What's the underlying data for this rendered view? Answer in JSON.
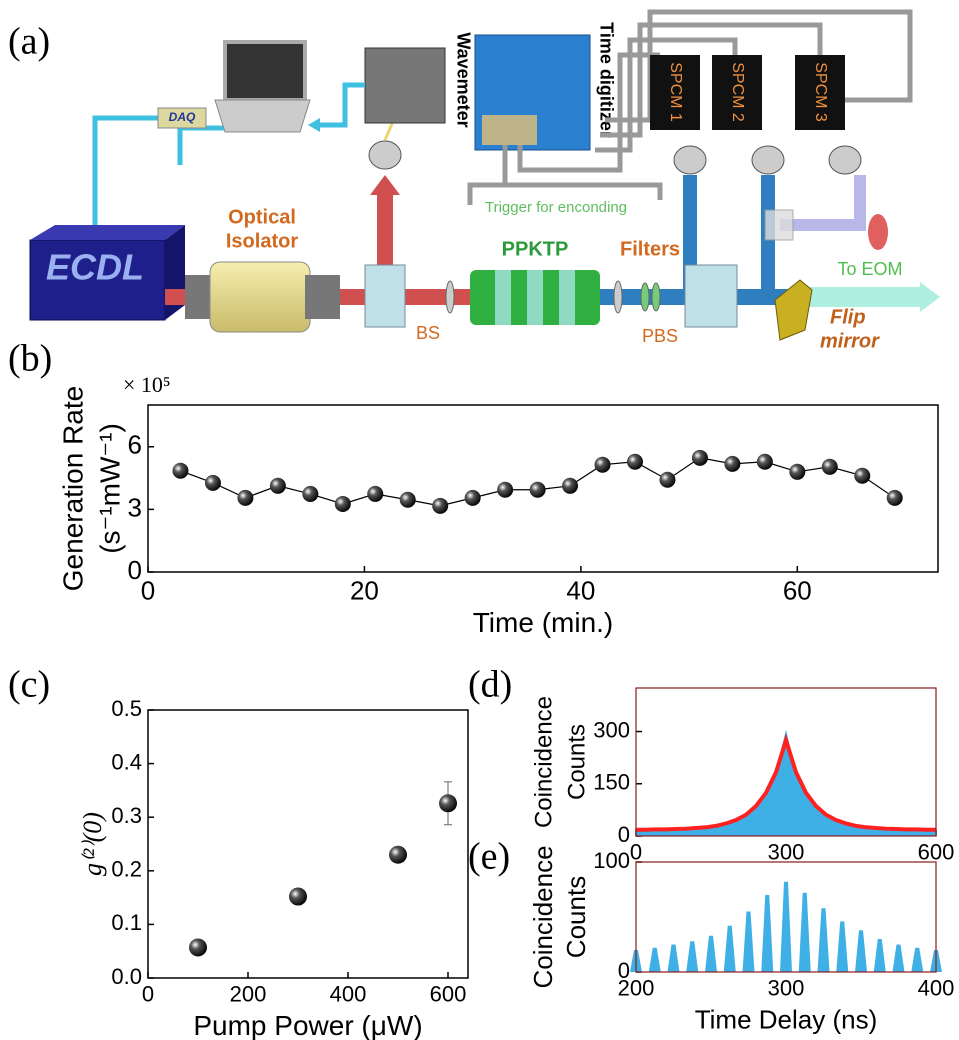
{
  "panel_labels": [
    "(a)",
    "(b)",
    "(c)",
    "(d)",
    "(e)"
  ],
  "diagram": {
    "ecdl": "ECDL",
    "optical_isolator": [
      "Optical",
      "Isolator"
    ],
    "bs": "BS",
    "ppktp": "PPKTP",
    "filters": "Filters",
    "pbs": "PBS",
    "flip_mirror": [
      "Flip",
      "mirror"
    ],
    "to_eom": "To EOM",
    "daq": "DAQ",
    "wavemeter": "Wavemeter",
    "time_digitizer": "Time digitizer",
    "spcm": [
      "SPCM 1",
      "SPCM 2",
      "SPCM 3"
    ],
    "trigger": "Trigger for enconding"
  },
  "chart_data": [
    {
      "type": "line",
      "xlabel": "Time (min.)",
      "ylabel": [
        "Generation Rate",
        "(s⁻¹mW⁻¹)"
      ],
      "multiplier": "× 10⁵",
      "x": [
        3,
        6,
        9,
        12,
        15,
        18,
        21,
        24,
        27,
        30,
        33,
        36,
        39,
        42,
        45,
        48,
        51,
        54,
        57,
        60,
        63,
        66,
        69
      ],
      "values": [
        4.85,
        4.27,
        3.55,
        4.13,
        3.74,
        3.26,
        3.74,
        3.46,
        3.17,
        3.55,
        3.94,
        3.94,
        4.13,
        5.14,
        5.28,
        4.42,
        5.47,
        5.18,
        5.28,
        4.8,
        5.04,
        4.61,
        3.55
      ],
      "color": "#000000",
      "xlim": [
        0,
        73
      ],
      "ylim": [
        0,
        8
      ],
      "xticks": [
        0,
        20,
        40,
        60
      ],
      "yticks": [
        0,
        3,
        6
      ]
    },
    {
      "type": "scatter",
      "xlabel": "Pump Power (μW)",
      "ylabel": [
        "g⁽²⁾(0)"
      ],
      "x": [
        100,
        300,
        500,
        600
      ],
      "values": [
        0.057,
        0.152,
        0.23,
        0.326
      ],
      "errors": [
        0.005,
        0.015,
        0.01,
        0.04
      ],
      "color": "#000000",
      "xlim": [
        0,
        640
      ],
      "ylim": [
        0,
        0.5
      ],
      "xticks": [
        0,
        200,
        400,
        600
      ],
      "yticks": [
        {
          "value": 0,
          "label": "0.0"
        },
        0.1,
        0.2,
        0.3,
        0.4,
        0.5
      ]
    },
    {
      "type": "area",
      "ylabel": [
        "Coincidence",
        "Counts"
      ],
      "x": [
        0,
        20,
        40,
        60,
        80,
        100,
        120,
        140,
        160,
        180,
        200,
        220,
        240,
        260,
        280,
        300,
        320,
        340,
        360,
        380,
        400,
        420,
        440,
        460,
        480,
        500,
        520,
        540,
        560,
        580,
        600
      ],
      "values": [
        20,
        19,
        21,
        18,
        22,
        20,
        24,
        27,
        30,
        38,
        47,
        64,
        90,
        130,
        190,
        305,
        185,
        125,
        88,
        60,
        45,
        35,
        30,
        26,
        22,
        21,
        20,
        19,
        21,
        19,
        20
      ],
      "fit": [
        18,
        18,
        19,
        19,
        20,
        21,
        23,
        25,
        29,
        36,
        46,
        61,
        86,
        124,
        183,
        275,
        183,
        124,
        86,
        61,
        46,
        36,
        29,
        25,
        23,
        21,
        20,
        19,
        19,
        18,
        18
      ],
      "color": "#3fb0e6",
      "fit_color": "#ff2020",
      "xlim": [
        0,
        600
      ],
      "ylim": [
        0,
        425
      ],
      "xticks": [
        0,
        300,
        600
      ],
      "yticks": [
        0,
        150,
        300
      ]
    },
    {
      "type": "bar",
      "xlabel": "Time Delay (ns)",
      "ylabel": [
        "Coincidence",
        "Counts"
      ],
      "x": [
        200,
        212.5,
        225,
        237.5,
        250,
        262.5,
        275,
        287.5,
        300,
        312.5,
        325,
        337.5,
        350,
        362.5,
        375,
        387.5,
        400
      ],
      "values": [
        20,
        22,
        25,
        28,
        33,
        42,
        55,
        70,
        82,
        72,
        58,
        46,
        38,
        30,
        25,
        22,
        20
      ],
      "color": "#3fb0e6",
      "xlim": [
        200,
        400
      ],
      "ylim": [
        0,
        100
      ],
      "xticks": [
        200,
        300,
        400
      ],
      "yticks": [
        0,
        100
      ]
    }
  ]
}
